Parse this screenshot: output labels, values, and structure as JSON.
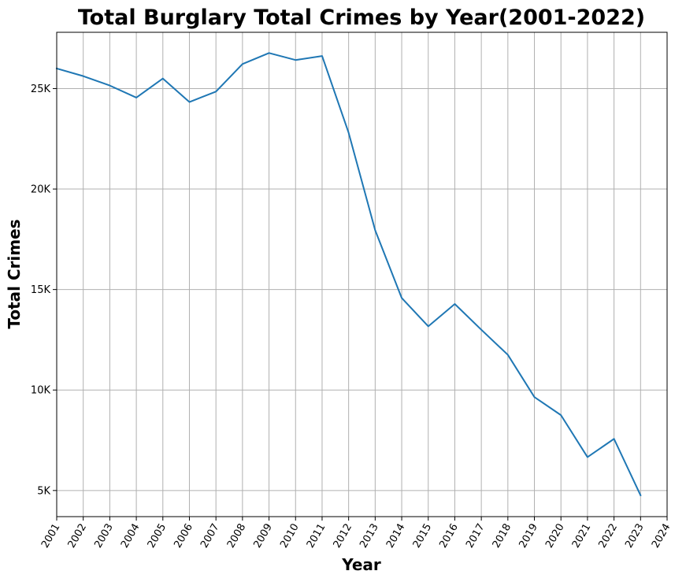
{
  "chart_data": {
    "type": "line",
    "title": "Total Burglary Total Crimes by Year(2001-2022)",
    "xlabel": "Year",
    "ylabel": "Total Crimes",
    "xlim": [
      2001,
      2024
    ],
    "ylim": [
      3700,
      27800
    ],
    "grid": true,
    "x_ticks": [
      "2001",
      "2002",
      "2003",
      "2004",
      "2005",
      "2006",
      "2007",
      "2008",
      "2009",
      "2010",
      "2011",
      "2012",
      "2013",
      "2014",
      "2015",
      "2016",
      "2017",
      "2018",
      "2019",
      "2020",
      "2021",
      "2022",
      "2023",
      "2024"
    ],
    "y_ticks": [
      {
        "value": 5000,
        "label": "5K"
      },
      {
        "value": 10000,
        "label": "10K"
      },
      {
        "value": 15000,
        "label": "15K"
      },
      {
        "value": 20000,
        "label": "20K"
      },
      {
        "value": 25000,
        "label": "25K"
      }
    ],
    "series": [
      {
        "color": "#1f77b4",
        "x": [
          2001,
          2002,
          2003,
          2004,
          2005,
          2006,
          2007,
          2008,
          2009,
          2010,
          2011,
          2012,
          2013,
          2014,
          2015,
          2016,
          2017,
          2018,
          2019,
          2020,
          2021,
          2022,
          2023
        ],
        "values": [
          26000,
          25620,
          25150,
          24550,
          25500,
          24330,
          24850,
          26220,
          26770,
          26420,
          26620,
          22800,
          17950,
          14580,
          13170,
          14280,
          13000,
          11750,
          9650,
          8750,
          6660,
          7570,
          4760
        ]
      }
    ]
  }
}
